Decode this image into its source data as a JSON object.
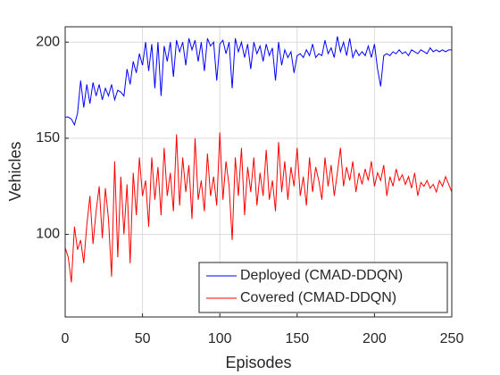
{
  "chart_data": {
    "type": "line",
    "xlabel": "Episodes",
    "ylabel": "Vehicles",
    "x": [
      0,
      2,
      4,
      6,
      8,
      10,
      12,
      14,
      16,
      18,
      20,
      22,
      24,
      26,
      28,
      30,
      32,
      34,
      36,
      38,
      40,
      42,
      44,
      46,
      48,
      50,
      52,
      54,
      56,
      58,
      60,
      62,
      64,
      66,
      68,
      70,
      72,
      74,
      76,
      78,
      80,
      82,
      84,
      86,
      88,
      90,
      92,
      94,
      96,
      98,
      100,
      102,
      104,
      106,
      108,
      110,
      112,
      114,
      116,
      118,
      120,
      122,
      124,
      126,
      128,
      130,
      132,
      134,
      136,
      138,
      140,
      142,
      144,
      146,
      148,
      150,
      152,
      154,
      156,
      158,
      160,
      162,
      164,
      166,
      168,
      170,
      172,
      174,
      176,
      178,
      180,
      182,
      184,
      186,
      188,
      190,
      192,
      194,
      196,
      198,
      200,
      202,
      204,
      206,
      208,
      210,
      212,
      214,
      216,
      218,
      220,
      222,
      224,
      226,
      228,
      230,
      232,
      234,
      236,
      238,
      240,
      242,
      244,
      246,
      248,
      250
    ],
    "series": [
      {
        "name": "Deployed (CMAD-DDQN)",
        "color": "#0000ff",
        "values": [
          161,
          161,
          160,
          157,
          163,
          180,
          166,
          178,
          168,
          179,
          172,
          178,
          170,
          176,
          172,
          178,
          170,
          175,
          174,
          172,
          186,
          178,
          190,
          184,
          194,
          188,
          200,
          185,
          199,
          176,
          200,
          172,
          198,
          190,
          200,
          182,
          201,
          195,
          200,
          188,
          202,
          196,
          201,
          190,
          200,
          185,
          202,
          198,
          200,
          180,
          199,
          201,
          194,
          200,
          176,
          202,
          195,
          200,
          192,
          199,
          186,
          200,
          194,
          198,
          190,
          199,
          193,
          197,
          180,
          200,
          188,
          196,
          192,
          195,
          184,
          193,
          194,
          192,
          196,
          193,
          199,
          192,
          194,
          193,
          201,
          194,
          197,
          192,
          203,
          195,
          200,
          193,
          202,
          192,
          196,
          193,
          195,
          193,
          198,
          192,
          199,
          186,
          177,
          193,
          194,
          193,
          195,
          194,
          196,
          194,
          195,
          193,
          196,
          195,
          194,
          196,
          195,
          194,
          197,
          195,
          196,
          195,
          196,
          195,
          196,
          196
        ]
      },
      {
        "name": "Covered (CMAD-DDQN)",
        "color": "#ff0000",
        "values": [
          93,
          88,
          75,
          104,
          92,
          97,
          85,
          105,
          120,
          95,
          112,
          125,
          98,
          124,
          108,
          78,
          138,
          88,
          130,
          100,
          126,
          85,
          132,
          110,
          140,
          120,
          128,
          104,
          140,
          118,
          135,
          110,
          145,
          120,
          132,
          112,
          152,
          115,
          140,
          122,
          136,
          108,
          150,
          118,
          128,
          112,
          142,
          120,
          130,
          115,
          153,
          118,
          138,
          125,
          97,
          140,
          120,
          145,
          110,
          135,
          122,
          140,
          115,
          132,
          120,
          144,
          118,
          128,
          112,
          148,
          122,
          138,
          118,
          135,
          125,
          145,
          120,
          130,
          115,
          140,
          122,
          135,
          128,
          118,
          140,
          125,
          136,
          120,
          132,
          145,
          125,
          135,
          128,
          138,
          122,
          132,
          126,
          134,
          128,
          138,
          125,
          132,
          128,
          136,
          120,
          130,
          125,
          134,
          128,
          131,
          126,
          130,
          124,
          132,
          120,
          127,
          125,
          128,
          124,
          126,
          122,
          128,
          125,
          130,
          126,
          122
        ]
      }
    ],
    "xlim": [
      0,
      250
    ],
    "xticks": [
      0,
      50,
      100,
      150,
      200,
      250
    ],
    "ylim": [
      57,
      208
    ],
    "yticks": [
      100,
      150,
      200
    ],
    "grid": true,
    "legend": "lower right"
  }
}
